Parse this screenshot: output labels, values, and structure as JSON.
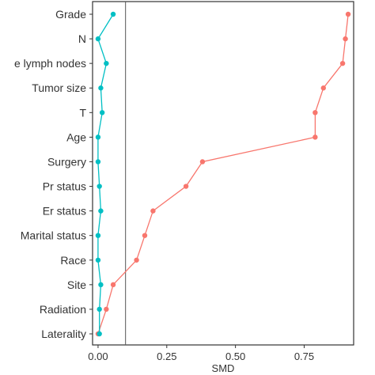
{
  "chart_data": {
    "type": "line",
    "title": "",
    "xlabel": "SMD",
    "ylabel": "",
    "xlim": [
      -0.02,
      0.93
    ],
    "x_ticks": [
      "0.00",
      "0.25",
      "0.50",
      "0.75"
    ],
    "x_tick_values": [
      0,
      0.25,
      0.5,
      0.75
    ],
    "reference_line_x": 0.1,
    "grid": false,
    "categories": [
      "Grade",
      "N",
      "Positive lymph nodes",
      "Tumor size",
      "T",
      "Age",
      "Surgery",
      "Pr status",
      "Er status",
      "Marital status",
      "Race",
      "Site",
      "Radiation",
      "Laterality"
    ],
    "category_labels": [
      "Grade",
      "N",
      "e lymph nodes",
      "Tumor size",
      "T",
      "Age",
      "Surgery",
      "Pr status",
      "Er status",
      "Marital status",
      "Race",
      "Site",
      "Radiation",
      "Laterality"
    ],
    "series": [
      {
        "color": "#F8766D",
        "values": [
          0.91,
          0.9,
          0.89,
          0.82,
          0.79,
          0.79,
          0.38,
          0.32,
          0.2,
          0.17,
          0.14,
          0.055,
          0.03,
          0.0
        ]
      },
      {
        "color": "#00BFC4",
        "values": [
          0.055,
          0.0,
          0.03,
          0.01,
          0.015,
          0.0,
          0.0,
          0.005,
          0.01,
          0.0,
          0.0,
          0.01,
          0.005,
          0.005
        ]
      }
    ]
  }
}
